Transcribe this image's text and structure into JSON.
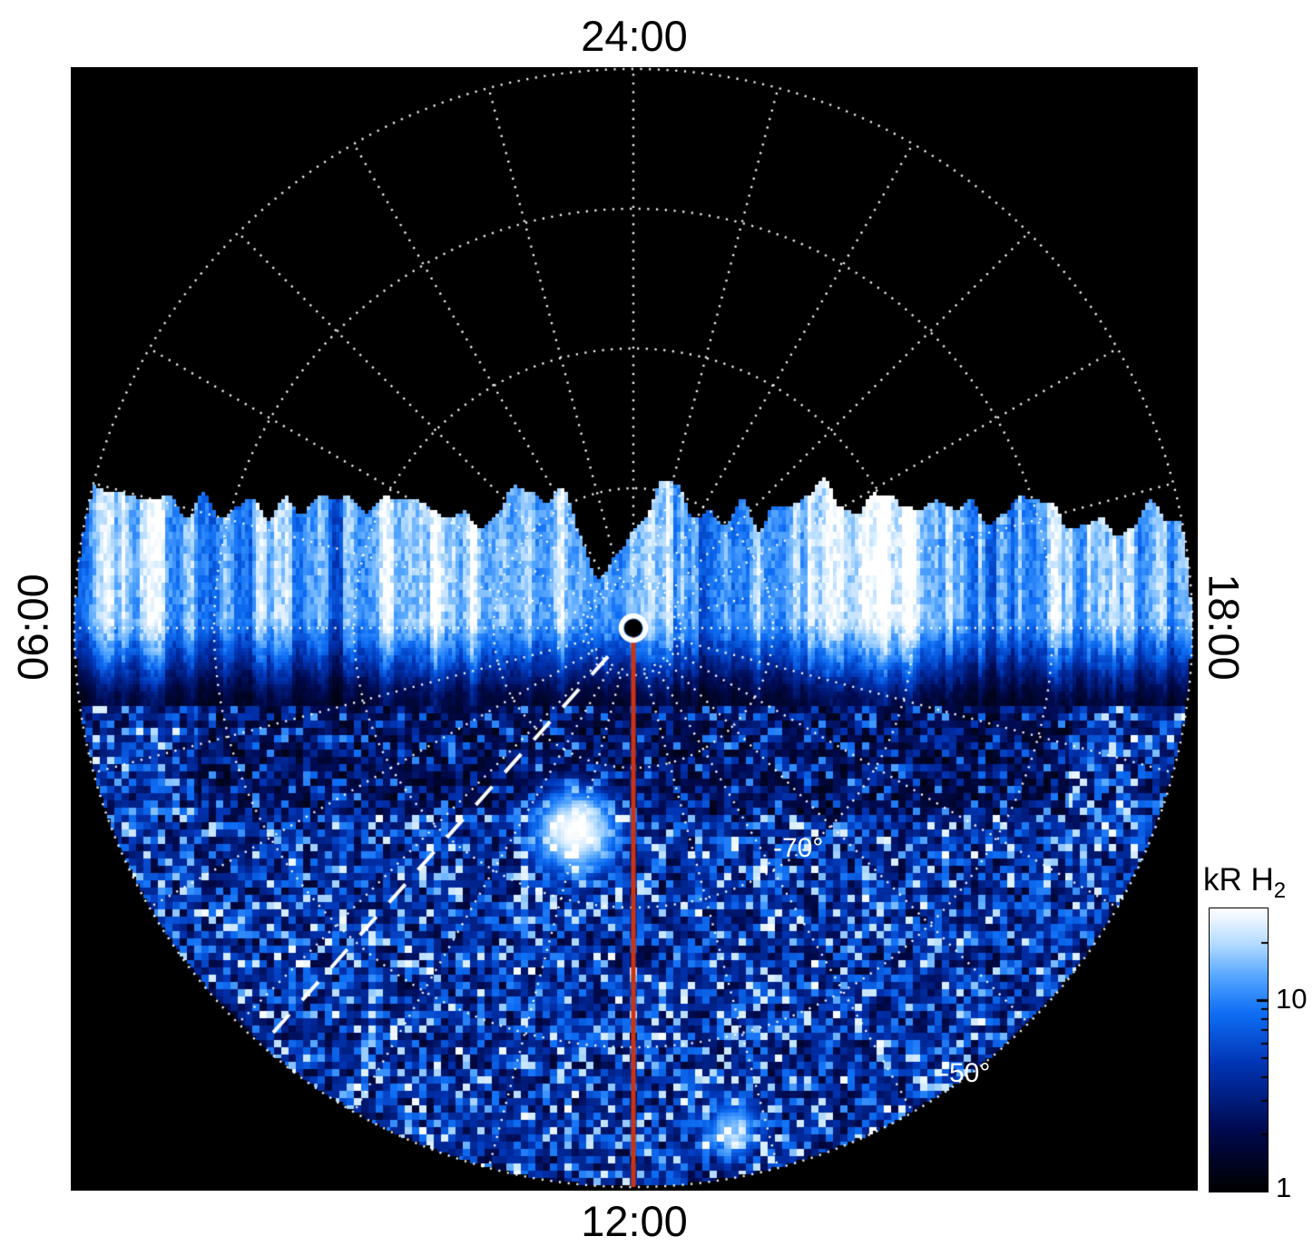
{
  "figure": {
    "background": "#ffffff",
    "plot_background": "#000000",
    "grid_color": "#ffffff"
  },
  "chart_data": {
    "type": "heatmap",
    "projection": "polar",
    "description": "Polar projection map of H2 auroral emission brightness versus local time (angle) and latitude (radius); pole at center, upper half is un-observed (black), lower half shows speckled emission with a bright band along the dawn-dusk line",
    "time_labels": {
      "top": "24:00",
      "bottom": "12:00",
      "left": "06:00",
      "right": "18:00"
    },
    "grid": {
      "style": "dotted-white",
      "latitude_rings_deg": [
        -85,
        -80,
        -70,
        -60,
        -50
      ],
      "ring_labels": [
        "-70°",
        "-50°"
      ],
      "spoke_interval_hours": 1
    },
    "colorbar": {
      "title_main": "kR H",
      "title_sub": "2",
      "scale": "log",
      "min": 1,
      "max": 30,
      "ticks": [
        "10",
        "1"
      ]
    },
    "features": {
      "no_data_region": "upper (nightside, 18:00-24:00-06:00) half of disk is black with grid only",
      "emission_band": {
        "location": "bright ragged band of vertical streaks along the 06:00-18:00 line, mostly just above it",
        "peak_kR": 30,
        "background_speckle_kR_range": [
          1,
          12
        ]
      },
      "noon_meridian_line_color": "#cc3311",
      "dashed_meridian_local_time": "09:15",
      "center_marker": "white open circle at pole"
    },
    "colormap_stops": [
      [
        0.0,
        "#000000"
      ],
      [
        0.22,
        "#000a50"
      ],
      [
        0.45,
        "#0034b4"
      ],
      [
        0.63,
        "#0e6ef4"
      ],
      [
        0.76,
        "#55a6ff"
      ],
      [
        0.88,
        "#b7ddff"
      ],
      [
        1.0,
        "#ffffff"
      ]
    ]
  }
}
